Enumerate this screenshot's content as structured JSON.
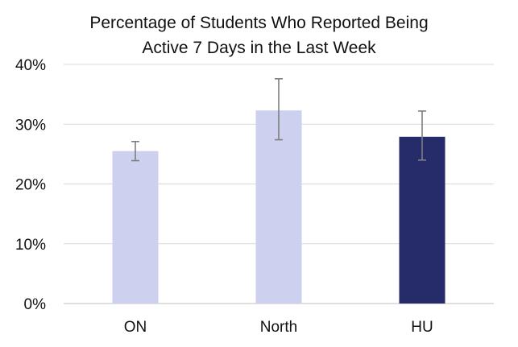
{
  "chart_data": {
    "type": "bar",
    "title_lines": [
      "Percentage of Students Who Reported Being",
      "Active 7 Days in the Last Week"
    ],
    "categories": [
      "ON",
      "North",
      "HU"
    ],
    "values": [
      25.5,
      32.3,
      27.9
    ],
    "error_low": [
      23.9,
      27.4,
      24.0
    ],
    "error_high": [
      27.1,
      37.6,
      32.2
    ],
    "bar_colors": [
      "#cdd0ee",
      "#cdd0ee",
      "#252c69"
    ],
    "error_bar_color": "#7f7f7f",
    "grid_color": "#d9d9d9",
    "ylim": [
      0,
      40
    ],
    "y_ticks": [
      "0%",
      "10%",
      "20%",
      "30%",
      "40%"
    ],
    "grid": true,
    "legend": "none",
    "xlabel": "",
    "ylabel": ""
  }
}
